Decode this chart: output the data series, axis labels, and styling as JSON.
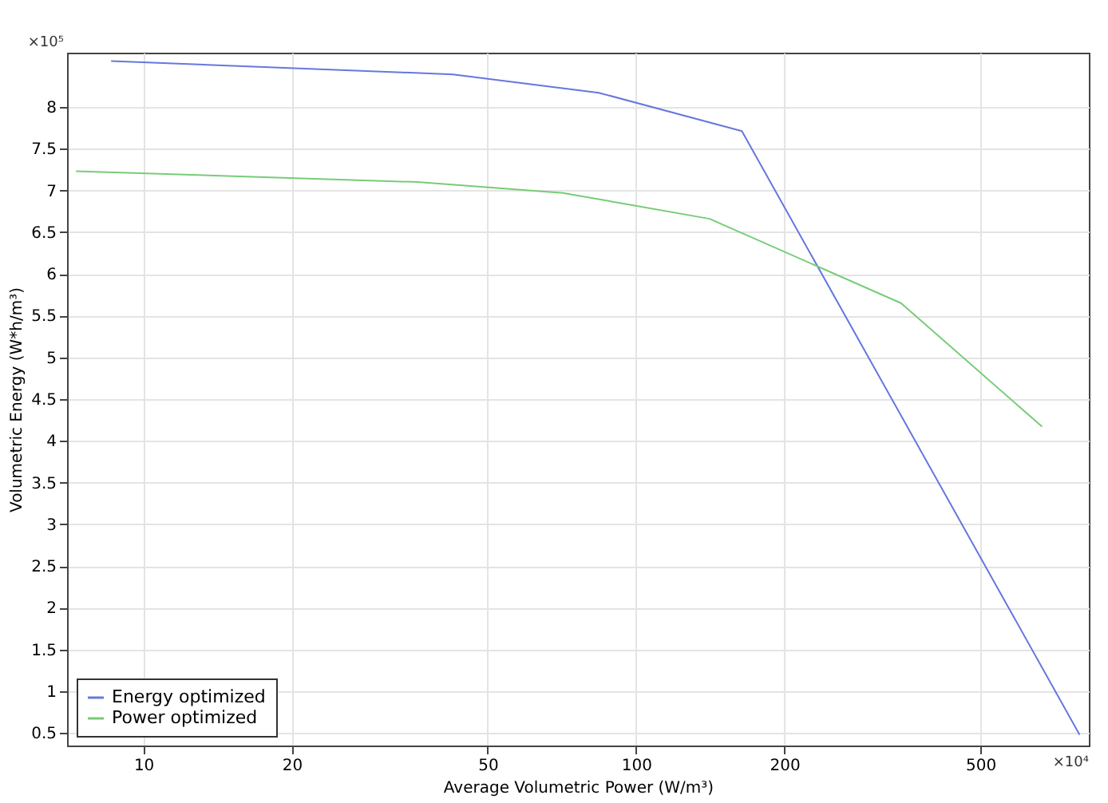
{
  "chart_data": {
    "type": "line",
    "xlabel": "Average Volumetric Power (W/m³)",
    "ylabel": "Volumetric Energy (W*h/m³)",
    "annotations": [
      "×10⁵",
      "×10⁴"
    ],
    "log": "x",
    "xlim": [
      7,
      830
    ],
    "xticks": [
      10,
      20,
      50,
      100,
      200,
      500
    ],
    "ylim": [
      0.35,
      8.65
    ],
    "yticks": [
      0.5,
      1,
      1.5,
      2,
      2.5,
      3,
      3.5,
      4,
      4.5,
      5,
      5.5,
      6,
      6.5,
      7,
      7.5,
      8
    ],
    "grid": true,
    "legend": "bottom left",
    "line_style": "solid",
    "marker": "none",
    "series": [
      {
        "name": "Energy optimized",
        "color": "#6677dd",
        "x": [
          8.6,
          42.5,
          84,
          164,
          795
        ],
        "values": [
          8.55,
          8.39,
          8.17,
          7.71,
          0.48
        ]
      },
      {
        "name": "Power optimized",
        "color": "#77cc77",
        "x": [
          7.3,
          36,
          71,
          141,
          345,
          667
        ],
        "values": [
          7.23,
          7.1,
          6.97,
          6.66,
          5.65,
          4.17
        ]
      }
    ]
  }
}
